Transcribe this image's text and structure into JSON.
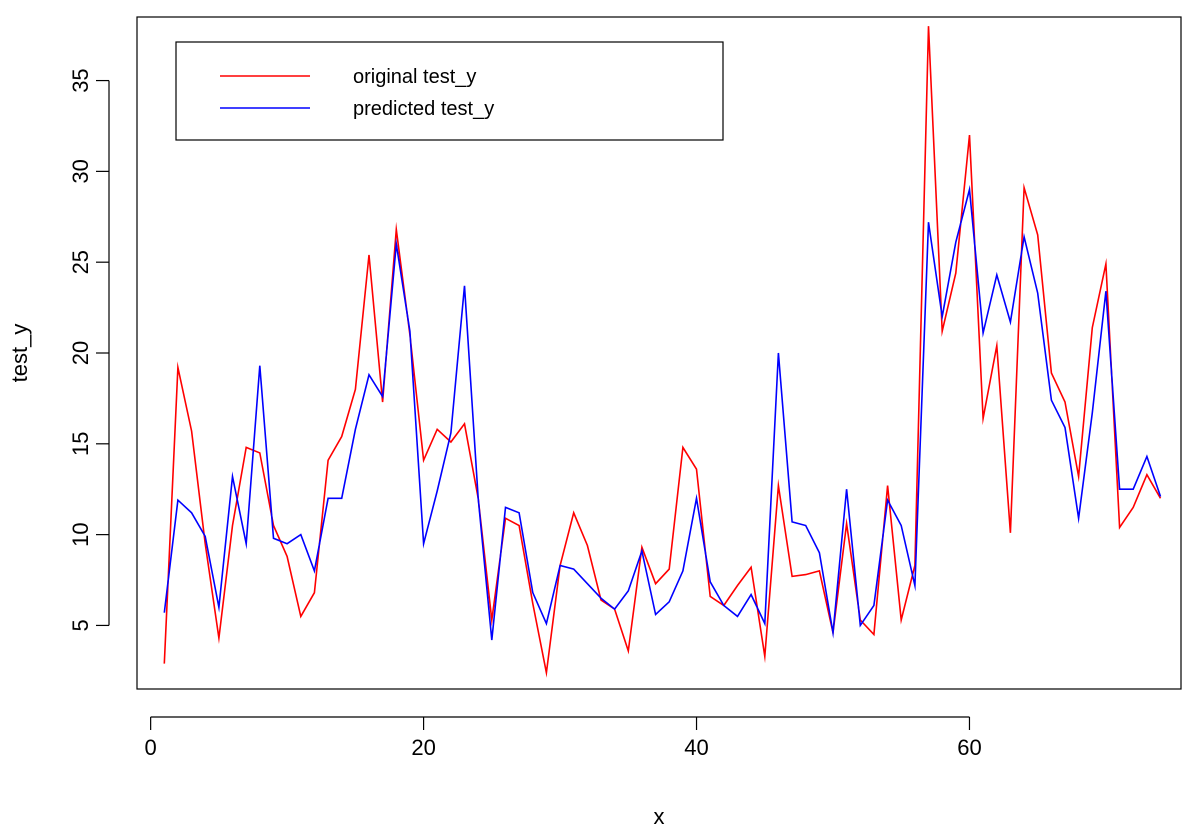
{
  "chart_data": {
    "type": "line",
    "title": "",
    "xlabel": "x",
    "ylabel": "test_y",
    "xlim": [
      -1,
      75.5
    ],
    "ylim": [
      1.5,
      38.5
    ],
    "x_ticks": [
      0,
      20,
      40,
      60
    ],
    "y_ticks": [
      5,
      10,
      15,
      20,
      25,
      30,
      35
    ],
    "grid": false,
    "legend_position": "top-left",
    "x": [
      1,
      2,
      3,
      4,
      5,
      6,
      7,
      8,
      9,
      10,
      11,
      12,
      13,
      14,
      15,
      16,
      17,
      18,
      19,
      20,
      21,
      22,
      23,
      24,
      25,
      26,
      27,
      28,
      29,
      30,
      31,
      32,
      33,
      34,
      35,
      36,
      37,
      38,
      39,
      40,
      41,
      42,
      43,
      44,
      45,
      46,
      47,
      48,
      49,
      50,
      51,
      52,
      53,
      54,
      55,
      56,
      57,
      58,
      59,
      60,
      61,
      62,
      63,
      64,
      65,
      66,
      67,
      68,
      69,
      70,
      71,
      72,
      73,
      74
    ],
    "series": [
      {
        "name": "original test_y",
        "color": "#ff0000",
        "values": [
          2.9,
          19.2,
          15.7,
          9.5,
          4.3,
          10.5,
          14.8,
          14.5,
          10.5,
          8.8,
          5.5,
          6.8,
          14.1,
          15.4,
          18.0,
          25.4,
          17.3,
          26.8,
          21.0,
          14.1,
          15.8,
          15.1,
          16.1,
          12.0,
          5.3,
          10.9,
          10.5,
          6.2,
          2.4,
          8.3,
          11.2,
          9.4,
          6.4,
          5.9,
          3.6,
          9.3,
          7.3,
          8.1,
          14.8,
          13.6,
          6.6,
          6.1,
          7.2,
          8.2,
          3.3,
          12.7,
          7.7,
          7.8,
          8.0,
          4.6,
          10.6,
          5.3,
          4.5,
          12.7,
          5.3,
          8.3,
          38.0,
          21.2,
          24.4,
          32.0,
          16.4,
          20.4,
          10.1,
          29.1,
          26.5,
          18.9,
          17.3,
          13.2,
          21.4,
          24.9,
          10.4,
          11.5,
          13.3,
          12.0
        ],
        "show_points": false
      },
      {
        "name": "predicted test_y",
        "color": "#0000ff",
        "values": [
          5.7,
          11.9,
          11.2,
          9.9,
          6.0,
          13.2,
          9.5,
          19.3,
          9.8,
          9.5,
          10.0,
          8.0,
          12.0,
          12.0,
          15.8,
          18.8,
          17.6,
          26.0,
          21.2,
          9.5,
          12.4,
          15.6,
          23.7,
          12.0,
          4.2,
          11.5,
          11.2,
          6.8,
          5.1,
          8.3,
          8.1,
          7.3,
          6.5,
          5.9,
          6.9,
          9.1,
          5.6,
          6.3,
          8.0,
          12.0,
          7.4,
          6.1,
          5.5,
          6.7,
          5.1,
          20.0,
          10.7,
          10.5,
          9.0,
          4.6,
          12.5,
          5.0,
          6.1,
          11.9,
          10.5,
          7.2,
          27.2,
          22.0,
          26.1,
          29.0,
          21.1,
          24.3,
          21.7,
          26.4,
          23.3,
          17.4,
          15.9,
          10.9,
          16.7,
          23.4,
          12.5,
          12.5,
          14.3,
          12.1
        ],
        "show_points": false
      }
    ]
  }
}
